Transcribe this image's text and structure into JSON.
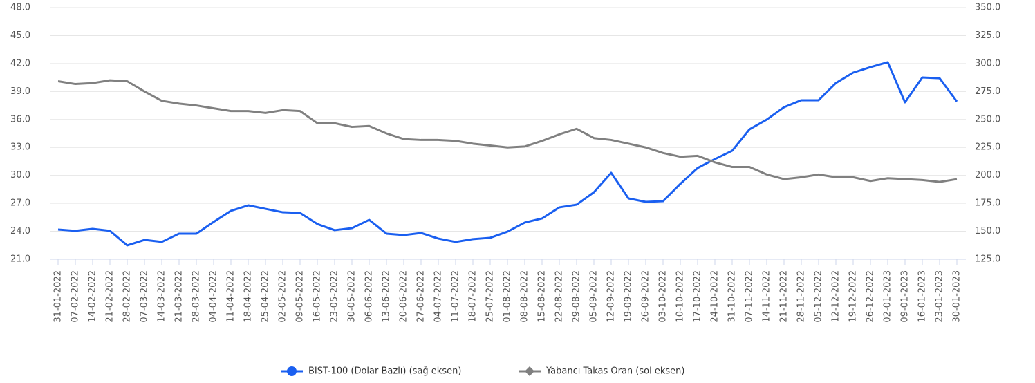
{
  "chart_data": {
    "type": "line",
    "categories": [
      "31-01-2022",
      "07-02-2022",
      "14-02-2022",
      "21-02-2022",
      "28-02-2022",
      "07-03-2022",
      "14-03-2022",
      "21-03-2022",
      "28-03-2022",
      "04-04-2022",
      "11-04-2022",
      "18-04-2022",
      "25-04-2022",
      "02-05-2022",
      "09-05-2022",
      "16-05-2022",
      "23-05-2022",
      "30-05-2022",
      "06-06-2022",
      "13-06-2022",
      "20-06-2022",
      "27-06-2022",
      "04-07-2022",
      "11-07-2022",
      "18-07-2022",
      "25-07-2022",
      "01-08-2022",
      "08-08-2022",
      "15-08-2022",
      "22-08-2022",
      "29-08-2022",
      "05-09-2022",
      "12-09-2022",
      "19-09-2022",
      "26-09-2022",
      "03-10-2022",
      "10-10-2022",
      "17-10-2022",
      "24-10-2022",
      "31-10-2022",
      "07-11-2022",
      "14-11-2022",
      "21-11-2022",
      "28-11-2022",
      "05-12-2022",
      "12-12-2022",
      "19-12-2022",
      "26-12-2022",
      "02-01-2023",
      "09-01-2023",
      "16-01-2023",
      "23-01-2023",
      "30-01-2023"
    ],
    "series": [
      {
        "name": "BIST-100 (Dolar Bazlı) (sağ eksen)",
        "color": "#1a5ff0",
        "axis": "y2",
        "marker": "circle",
        "values": [
          151.6,
          150.4,
          152.2,
          150.4,
          137.4,
          142.3,
          140.5,
          147.9,
          147.9,
          158.4,
          168.3,
          173.2,
          170.1,
          167.0,
          166.4,
          156.5,
          151.0,
          152.8,
          160.2,
          147.9,
          146.6,
          148.5,
          143.5,
          140.5,
          143.0,
          144.2,
          149.7,
          157.8,
          161.5,
          171.4,
          173.8,
          184.9,
          202.3,
          179.4,
          176.3,
          176.9,
          192.4,
          206.6,
          214.6,
          222.0,
          241.2,
          249.9,
          261.0,
          267.2,
          267.2,
          282.6,
          291.9,
          296.8,
          301.2,
          265.3,
          287.6,
          286.9,
          266.0
        ]
      },
      {
        "name": "Yabancı Takas Oran (sol eksen)",
        "color": "#808080",
        "axis": "y",
        "marker": "diamond",
        "values": [
          40.1,
          39.8,
          39.9,
          40.2,
          40.1,
          39.0,
          38.0,
          37.7,
          37.5,
          37.2,
          36.9,
          36.9,
          36.7,
          37.0,
          36.9,
          35.6,
          35.6,
          35.2,
          35.3,
          34.5,
          33.9,
          33.8,
          33.8,
          33.7,
          33.4,
          33.2,
          33.0,
          33.1,
          33.7,
          34.4,
          35.0,
          34.0,
          33.8,
          33.4,
          33.0,
          32.4,
          32.0,
          32.1,
          31.4,
          30.9,
          30.9,
          30.1,
          29.6,
          29.8,
          30.1,
          29.8,
          29.8,
          29.4,
          29.7,
          29.6,
          29.5,
          29.3,
          29.6
        ]
      }
    ],
    "ylim": [
      21,
      48
    ],
    "yticks": [
      {
        "value": 21,
        "label": "21.0"
      },
      {
        "value": 24,
        "label": "24.0"
      },
      {
        "value": 27,
        "label": "27.0"
      },
      {
        "value": 30,
        "label": "30.0"
      },
      {
        "value": 33,
        "label": "33.0"
      },
      {
        "value": 36,
        "label": "36.0"
      },
      {
        "value": 39,
        "label": "39.0"
      },
      {
        "value": 42,
        "label": "42.0"
      },
      {
        "value": 45,
        "label": "45.0"
      },
      {
        "value": 48,
        "label": "48.0"
      }
    ],
    "y2lim": [
      125,
      350
    ],
    "y2ticks": [
      {
        "value": 125,
        "label": "125.0"
      },
      {
        "value": 150,
        "label": "150.0"
      },
      {
        "value": 175,
        "label": "175.0"
      },
      {
        "value": 200,
        "label": "200.0"
      },
      {
        "value": 225,
        "label": "225.0"
      },
      {
        "value": 250,
        "label": "250.0"
      },
      {
        "value": 275,
        "label": "275.0"
      },
      {
        "value": 300,
        "label": "300.0"
      },
      {
        "value": 325,
        "label": "325.0"
      },
      {
        "value": 350,
        "label": "350.0"
      }
    ],
    "grid": true,
    "legend": "bottom"
  }
}
